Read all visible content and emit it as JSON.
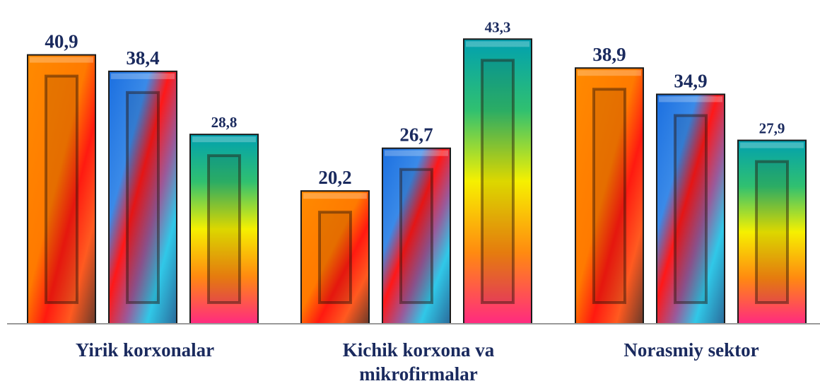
{
  "chart_data": {
    "type": "bar",
    "categories": [
      "Yirik korxonalar",
      "Kichik korxona va mikrofirmalar",
      "Norasmiy sektor"
    ],
    "category_label_lines": [
      [
        "Yirik korxonalar"
      ],
      [
        "Kichik korxona va",
        "mikrofirmalar"
      ],
      [
        "Norasmiy sektor"
      ]
    ],
    "series": [
      {
        "values": [
          40.9,
          20.2,
          38.9
        ],
        "labels": [
          "40,9",
          "20,2",
          "38,9"
        ],
        "color": "#ff7f00"
      },
      {
        "values": [
          38.4,
          26.7,
          34.9
        ],
        "labels": [
          "38,4",
          "26,7",
          "34,9"
        ],
        "color": "#1e7fe0"
      },
      {
        "values": [
          28.8,
          43.3,
          27.9
        ],
        "labels": [
          "28,8",
          "43,3",
          "27,9"
        ],
        "color": "#0aa0a0"
      }
    ],
    "ylim": [
      0,
      45
    ],
    "grid": false,
    "legend": "none",
    "label_color": "#1a2a5e"
  }
}
